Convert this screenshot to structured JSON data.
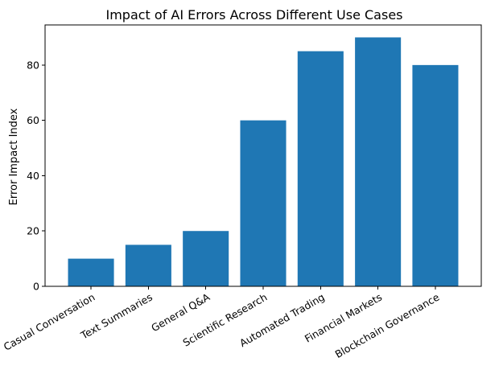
{
  "chart_data": {
    "type": "bar",
    "title": "Impact of AI Errors Across Different Use Cases",
    "xlabel": "",
    "ylabel": "Error Impact Index",
    "categories": [
      "Casual Conversation",
      "Text Summaries",
      "General Q&A",
      "Scientific Research",
      "Automated Trading",
      "Financial Markets",
      "Blockchain Governance"
    ],
    "values": [
      10,
      15,
      20,
      60,
      85,
      90,
      80
    ],
    "ylim": [
      0,
      94.5
    ],
    "yticks": [
      "0",
      "20",
      "40",
      "60",
      "80"
    ],
    "grid": false,
    "bar_color": "#1f77b4"
  }
}
